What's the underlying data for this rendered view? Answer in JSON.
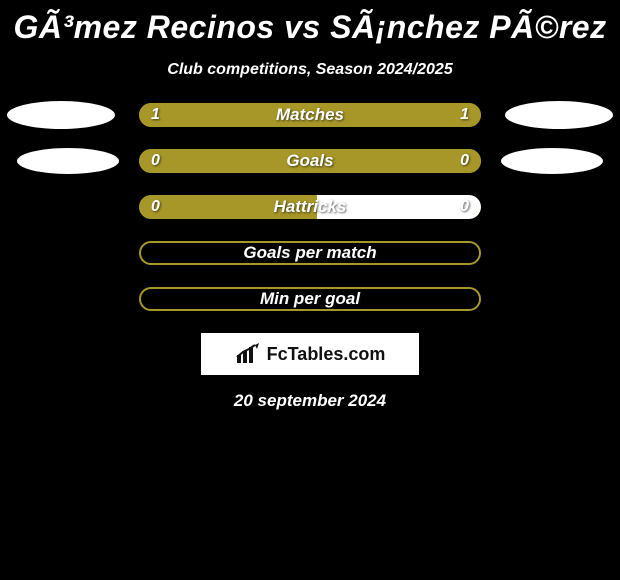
{
  "title": "GÃ³mez Recinos vs SÃ¡nchez PÃ©rez",
  "subtitle": "Club competitions, Season 2024/2025",
  "date": "20 september 2024",
  "logo_text": "FcTables.com",
  "colors": {
    "bar_olive": "#a79728",
    "bar_white": "#ffffff",
    "background": "#000000"
  },
  "stats": [
    {
      "label": "Matches",
      "left_value": "1",
      "right_value": "1",
      "left_pct": 50,
      "right_pct": 50,
      "left_color": "#a79728",
      "right_color": "#a79728",
      "outline": false,
      "show_values": true,
      "show_left_ellipse": true,
      "show_right_ellipse": true,
      "ellipse_left_class": "ellipse-left-0",
      "ellipse_right_class": "ellipse-right-0"
    },
    {
      "label": "Goals",
      "left_value": "0",
      "right_value": "0",
      "left_pct": 100,
      "right_pct": 0,
      "left_color": "#a79728",
      "right_color": "#a79728",
      "outline": false,
      "show_values": true,
      "show_left_ellipse": true,
      "show_right_ellipse": true,
      "ellipse_left_class": "ellipse-left-1",
      "ellipse_right_class": "ellipse-right-1"
    },
    {
      "label": "Hattricks",
      "left_value": "0",
      "right_value": "0",
      "left_pct": 52,
      "right_pct": 48,
      "left_color": "#a79728",
      "right_color": "#ffffff",
      "outline": false,
      "show_values": true,
      "show_left_ellipse": false,
      "show_right_ellipse": false,
      "ellipse_left_class": "",
      "ellipse_right_class": ""
    },
    {
      "label": "Goals per match",
      "left_value": "",
      "right_value": "",
      "left_pct": 0,
      "right_pct": 0,
      "left_color": "#a79728",
      "right_color": "#a79728",
      "outline": true,
      "show_values": false,
      "show_left_ellipse": false,
      "show_right_ellipse": false,
      "ellipse_left_class": "",
      "ellipse_right_class": ""
    },
    {
      "label": "Min per goal",
      "left_value": "",
      "right_value": "",
      "left_pct": 0,
      "right_pct": 0,
      "left_color": "#a79728",
      "right_color": "#a79728",
      "outline": true,
      "show_values": false,
      "show_left_ellipse": false,
      "show_right_ellipse": false,
      "ellipse_left_class": "",
      "ellipse_right_class": ""
    }
  ]
}
